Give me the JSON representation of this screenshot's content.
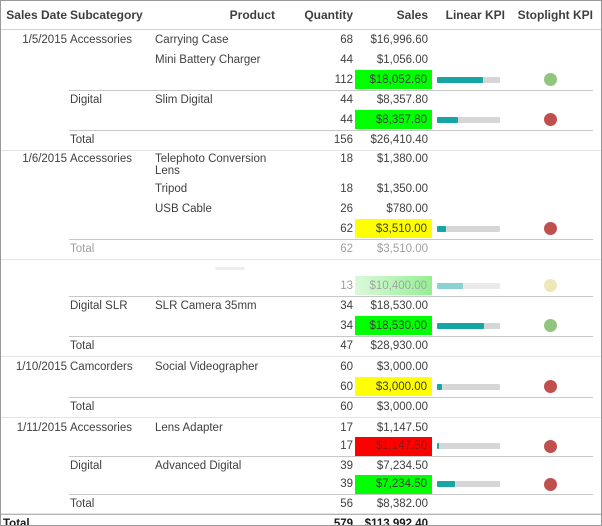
{
  "table": {
    "columns": {
      "sales_date": "Sales Date",
      "subcategory": "Subcategory",
      "product": "Product",
      "quantity": "Quantity",
      "sales": "Sales",
      "linear_kpi": "Linear KPI",
      "stoplight_kpi": "Stoplight KPI"
    },
    "colors": {
      "kpi_bar_fill": "#17a5a5",
      "kpi_bar_track": "#d6d6d6",
      "cell_green": "#00ff00",
      "cell_yellow": "#ffff00",
      "cell_red": "#ff0000",
      "red_cell_text": "#8b1a1a",
      "dot_green": "#93c47d",
      "dot_red": "#c0504d",
      "dot_yellow": "#ddcf70"
    },
    "rows": [
      {
        "type": "detail",
        "date": "1/5/2015",
        "subcategory": "Accessories",
        "product": "Carrying Case",
        "quantity": "68",
        "sales": "$16,996.60"
      },
      {
        "type": "detail",
        "product": "Mini Battery Charger",
        "quantity": "44",
        "sales": "$1,056.00"
      },
      {
        "type": "subtotal",
        "quantity": "112",
        "sales": "$18,052.60",
        "sales_bg": "green",
        "kpi_bar_pct": 73,
        "dot": "green"
      },
      {
        "type": "detail",
        "subcategory": "Digital",
        "product": "Slim Digital",
        "quantity": "44",
        "sales": "$8,357.80"
      },
      {
        "type": "subtotal",
        "quantity": "44",
        "sales": "$8,357.80",
        "sales_bg": "green",
        "kpi_bar_pct": 33,
        "dot": "red"
      },
      {
        "type": "total",
        "label": "Total",
        "quantity": "156",
        "sales": "$26,410.40"
      },
      {
        "type": "detail",
        "tall": true,
        "date": "1/6/2015",
        "subcategory": "Accessories",
        "product": "Telephoto Conversion Lens",
        "quantity": "18",
        "sales": "$1,380.00"
      },
      {
        "type": "detail",
        "product": "Tripod",
        "quantity": "18",
        "sales": "$1,350.00"
      },
      {
        "type": "detail",
        "product": "USB Cable",
        "quantity": "26",
        "sales": "$780.00"
      },
      {
        "type": "subtotal",
        "quantity": "62",
        "sales": "$3,510.00",
        "sales_bg": "yellow",
        "kpi_bar_pct": 14,
        "dot": "red"
      },
      {
        "type": "total",
        "faded": true,
        "label": "Total",
        "quantity": "62",
        "sales": "$3,510.00"
      },
      {
        "type": "blank",
        "faded": true
      },
      {
        "type": "subtotal",
        "faded": true,
        "quantity": "13",
        "sales": "$10,400.00",
        "sales_bg": "green-fade",
        "kpi_bar_pct": 42,
        "dot": "yellow"
      },
      {
        "type": "detail",
        "subcategory": "Digital SLR",
        "product": "SLR Camera 35mm",
        "quantity": "34",
        "sales": "$18,530.00"
      },
      {
        "type": "subtotal",
        "quantity": "34",
        "sales": "$18,530.00",
        "sales_bg": "green",
        "kpi_bar_pct": 75,
        "dot": "green"
      },
      {
        "type": "total",
        "label": "Total",
        "quantity": "47",
        "sales": "$28,930.00"
      },
      {
        "type": "detail",
        "date": "1/10/2015",
        "subcategory": "Camcorders",
        "product": "Social Videographer",
        "quantity": "60",
        "sales": "$3,000.00"
      },
      {
        "type": "subtotal",
        "quantity": "60",
        "sales": "$3,000.00",
        "sales_bg": "yellow",
        "kpi_bar_pct": 8,
        "dot": "red"
      },
      {
        "type": "total",
        "label": "Total",
        "quantity": "60",
        "sales": "$3,000.00"
      },
      {
        "type": "detail",
        "date": "1/11/2015",
        "subcategory": "Accessories",
        "product": "Lens Adapter",
        "quantity": "17",
        "sales": "$1,147.50"
      },
      {
        "type": "subtotal",
        "quantity": "17",
        "sales": "$1,147.50",
        "sales_bg": "red",
        "kpi_bar_pct": 3,
        "dot": "red"
      },
      {
        "type": "detail",
        "subcategory": "Digital",
        "product": "Advanced Digital",
        "quantity": "39",
        "sales": "$7,234.50"
      },
      {
        "type": "subtotal",
        "quantity": "39",
        "sales": "$7,234.50",
        "sales_bg": "green",
        "kpi_bar_pct": 29,
        "dot": "red"
      },
      {
        "type": "total",
        "label": "Total",
        "quantity": "56",
        "sales": "$8,382.00"
      },
      {
        "type": "grand",
        "label": "Total",
        "quantity": "579",
        "sales": "$113,992.40"
      }
    ]
  }
}
